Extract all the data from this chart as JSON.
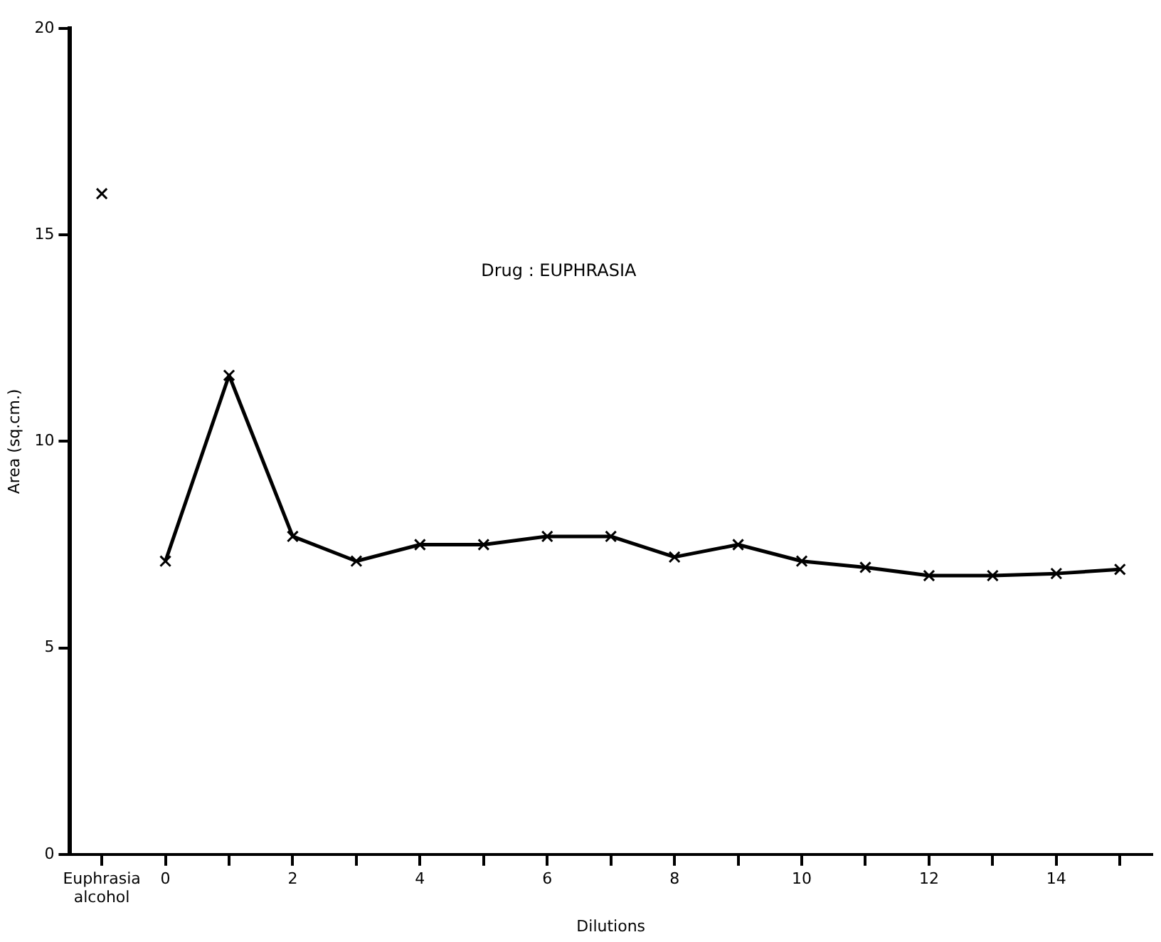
{
  "chart_data": {
    "type": "line",
    "xlabel": "Dilutions",
    "ylabel": "Area (sq.cm.)",
    "annotations": [
      "Drug : EUPHRASIA"
    ],
    "categories": [
      "Euphrasia alcohol",
      "0",
      null,
      "2",
      null,
      "4",
      null,
      "6",
      null,
      "8",
      null,
      "10",
      null,
      "12",
      null,
      "14",
      null
    ],
    "series": [
      {
        "type": "scatter",
        "color": "#000000",
        "values": [
          16.0,
          null,
          null,
          null,
          null,
          null,
          null,
          null,
          null,
          null,
          null,
          null,
          null,
          null,
          null,
          null,
          null
        ]
      },
      {
        "color": "#000000",
        "values": [
          null,
          7.1,
          11.6,
          7.7,
          7.1,
          7.5,
          7.5,
          7.7,
          7.7,
          7.2,
          7.5,
          7.1,
          6.95,
          6.75,
          6.75,
          6.8,
          6.9
        ]
      }
    ],
    "ylim": [
      0,
      20
    ],
    "yticks": [
      0,
      5,
      10,
      15,
      20
    ],
    "grid": false,
    "legend": false,
    "marker": "cross",
    "line_style": "solid"
  }
}
